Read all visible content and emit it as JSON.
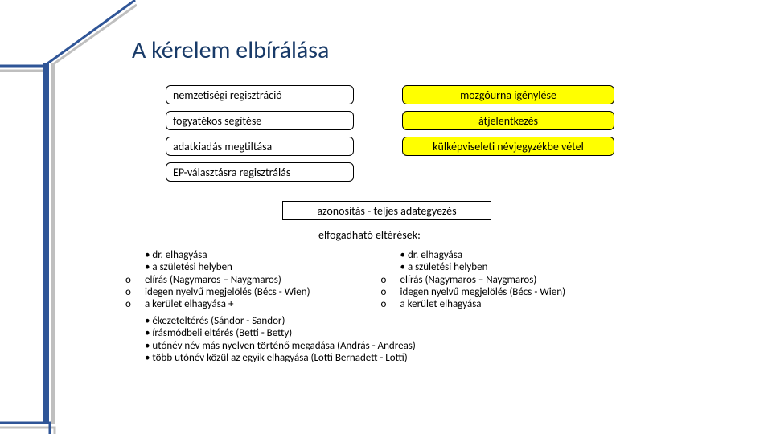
{
  "title": "A kérelem elbírálása",
  "leftBoxes": [
    "nemzetiségi regisztráció",
    "fogyatékos segítése",
    "adatkiadás megtiltása",
    "EP-választásra regisztrálás"
  ],
  "rightBoxes": [
    "mozgóurna igénylése",
    "átjelentkezés",
    "külképviseleti névjegyzékbe  vétel"
  ],
  "centerBox": "azonosítás - teljes adategyezés",
  "subText": "elfogadható eltérések:",
  "colA": [
    {
      "t": "b",
      "x": "dr. elhagyása"
    },
    {
      "t": "b",
      "x": "a születési helyben"
    },
    {
      "t": "o",
      "x": "elírás (Nagymaros – Naygmaros)"
    },
    {
      "t": "o",
      "x": "idegen nyelvű megjelölés (Bécs - Wien)"
    },
    {
      "t": "o",
      "x": "a kerület elhagyása  +"
    }
  ],
  "colB": [
    {
      "t": "b",
      "x": "dr. elhagyása"
    },
    {
      "t": "b",
      "x": "a születési helyben"
    },
    {
      "t": "o",
      "x": "elírás (Nagymaros – Naygmaros)"
    },
    {
      "t": "o",
      "x": "idegen nyelvű megjelölés (Bécs - Wien)"
    },
    {
      "t": "o",
      "x": "a kerület elhagyása"
    }
  ],
  "lower": [
    "ékezeteltérés (Sándor - Sandor)",
    "írásmódbeli eltérés (Betti - Betty)",
    "utónév név más nyelven történő megadása (András - Andreas)",
    "több utónév közül az egyik elhagyása (Lotti Bernadett - Lotti)"
  ],
  "colors": {
    "titleColor": "#183a68",
    "accentBlue": "#2f5597",
    "accentGrey": "#bfbfbf",
    "highlight": "#ffff00",
    "boxBorder": "#000000",
    "background": "#ffffff"
  },
  "fonts": {
    "titleSize": 30,
    "boxSize": 14,
    "bodySize": 13
  }
}
